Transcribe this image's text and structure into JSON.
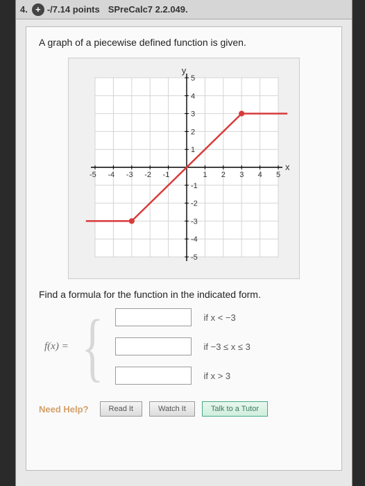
{
  "header": {
    "question_num": "4.",
    "points": "-/7.14 points",
    "reference": "SPreCalc7 2.2.049."
  },
  "prompt": "A graph of a piecewise defined function is given.",
  "subprompt": "Find a formula for the function in the indicated form.",
  "fx_label": "f(x) =",
  "pieces": [
    {
      "cond": "if x < −3"
    },
    {
      "cond": "if −3 ≤ x ≤ 3"
    },
    {
      "cond": "if x > 3"
    }
  ],
  "help": {
    "label": "Need Help?",
    "read": "Read It",
    "watch": "Watch It",
    "tutor": "Talk to a Tutor"
  },
  "chart": {
    "type": "piecewise-line",
    "xlim": [
      -5,
      5
    ],
    "ylim": [
      -5,
      5
    ],
    "xtick_step": 1,
    "ytick_step": 1,
    "x_tick_labels": [
      -5,
      -4,
      -3,
      -2,
      -1,
      1,
      2,
      3,
      4,
      5
    ],
    "y_tick_labels": [
      -5,
      -4,
      -3,
      -2,
      -1,
      1,
      2,
      3,
      4,
      5
    ],
    "x_axis_label": "x",
    "y_axis_label": "y",
    "grid_color": "#d4d4d4",
    "axis_color": "#000000",
    "background_color": "#ffffff",
    "line_color": "#d83a3a",
    "line_width": 2.5,
    "segments": [
      {
        "from": [
          -5.5,
          -3
        ],
        "to": [
          -3,
          -3
        ],
        "end_marker": "filled"
      },
      {
        "from": [
          -3,
          -3
        ],
        "to": [
          3,
          3
        ],
        "end_marker": "filled",
        "start_marker": "filled"
      },
      {
        "from": [
          3,
          3
        ],
        "to": [
          5.5,
          3
        ],
        "start_marker": "filled"
      }
    ],
    "marker_radius": 4,
    "tick_fontsize": 11,
    "label_fontsize": 13
  }
}
